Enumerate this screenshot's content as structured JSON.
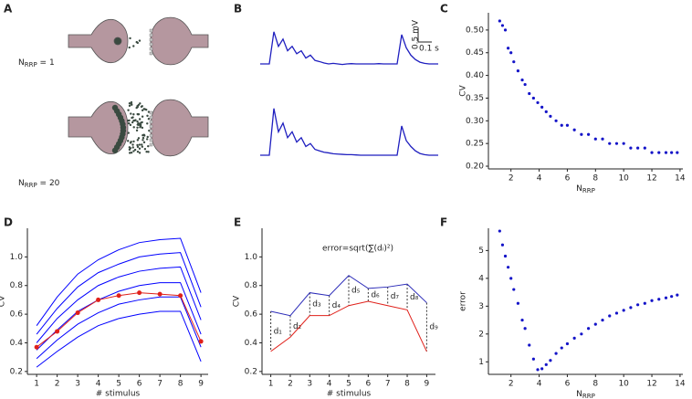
{
  "panel_labels": [
    "A",
    "B",
    "C",
    "D",
    "E",
    "F"
  ],
  "diagram": {
    "labels": [
      {
        "main": "N",
        "sub": "RRP",
        "rest": " = 1"
      },
      {
        "main": "N",
        "sub": "RRP",
        "rest": " = 20"
      }
    ]
  },
  "chart_data": [
    {
      "type": "trace",
      "scale_bar": {
        "y": 0.5,
        "y_label": "0.5 mV",
        "x": 0.1,
        "x_label": "0.1 s"
      },
      "series": [
        {
          "color": "#1f1fbf",
          "values": [
            0,
            0,
            0,
            1.1,
            0.6,
            0.85,
            0.45,
            0.6,
            0.35,
            0.45,
            0.2,
            0.3,
            0.12,
            0.08,
            0.03,
            0,
            0.02,
            0,
            -0.02,
            0,
            0.01,
            0,
            0,
            0,
            0,
            0,
            0.01,
            0,
            0,
            0,
            0,
            1.0,
            0.55,
            0.3,
            0.15,
            0.06,
            0.02,
            0,
            0,
            0
          ]
        },
        {
          "color": "#1f1fbf",
          "values": [
            0,
            0,
            0,
            1.6,
            0.8,
            1.1,
            0.6,
            0.8,
            0.45,
            0.6,
            0.3,
            0.4,
            0.2,
            0.15,
            0.1,
            0.08,
            0.05,
            0.04,
            0.03,
            0.02,
            0.02,
            0.01,
            0,
            0,
            0,
            0,
            0,
            0,
            0,
            0,
            0,
            1.0,
            0.5,
            0.3,
            0.15,
            0.06,
            0.02,
            0,
            0,
            0
          ]
        }
      ]
    },
    {
      "type": "scatter",
      "ylabel": "CV",
      "xlabel": {
        "main": "N",
        "sub": "RRP"
      },
      "xlim": [
        0.4,
        14.2
      ],
      "ylim": [
        0.194,
        0.538
      ],
      "xticks": [
        2,
        4,
        6,
        8,
        10,
        12,
        14
      ],
      "yticks": [
        {
          "value": 0.2,
          "label": "0.20"
        },
        {
          "value": 0.25,
          "label": "0.25"
        },
        {
          "value": 0.3,
          "label": "0.30"
        },
        {
          "value": 0.35,
          "label": "0.35"
        },
        {
          "value": 0.4,
          "label": "0.40"
        },
        {
          "value": 0.45,
          "label": "0.45"
        },
        {
          "value": 0.5,
          "label": "0.50"
        }
      ],
      "color": "#1414c8",
      "x": [
        1.2,
        1.4,
        1.6,
        1.8,
        2.0,
        2.2,
        2.5,
        2.8,
        3.0,
        3.3,
        3.6,
        3.9,
        4.2,
        4.5,
        4.8,
        5.2,
        5.6,
        6.0,
        6.5,
        7.0,
        7.5,
        8.0,
        8.5,
        9.0,
        9.5,
        10.0,
        10.5,
        11.0,
        11.5,
        12.0,
        12.5,
        13.0,
        13.4,
        13.8
      ],
      "values": [
        0.52,
        0.51,
        0.5,
        0.46,
        0.45,
        0.43,
        0.41,
        0.39,
        0.38,
        0.36,
        0.35,
        0.34,
        0.33,
        0.32,
        0.31,
        0.3,
        0.29,
        0.29,
        0.28,
        0.27,
        0.27,
        0.26,
        0.26,
        0.25,
        0.25,
        0.25,
        0.24,
        0.24,
        0.24,
        0.23,
        0.23,
        0.23,
        0.23,
        0.23
      ]
    },
    {
      "type": "line",
      "ylabel": "CV",
      "xlabel": "# stimulus",
      "xlim": [
        0.55,
        9.35
      ],
      "ylim": [
        0.18,
        1.2
      ],
      "xticks": [
        1,
        2,
        3,
        4,
        5,
        6,
        7,
        8,
        9
      ],
      "yticks": [
        0.2,
        0.4,
        0.6,
        0.8,
        {
          "value": 1.0,
          "label": "1.0"
        }
      ],
      "x": [
        1,
        2,
        3,
        4,
        5,
        6,
        7,
        8,
        9
      ],
      "series": [
        {
          "color": "#0000ff",
          "values": [
            0.23,
            0.34,
            0.44,
            0.52,
            0.57,
            0.6,
            0.62,
            0.62,
            0.27
          ]
        },
        {
          "color": "#0000ff",
          "values": [
            0.29,
            0.42,
            0.53,
            0.61,
            0.67,
            0.7,
            0.72,
            0.72,
            0.37
          ]
        },
        {
          "color": "#0000ff",
          "values": [
            0.35,
            0.49,
            0.62,
            0.7,
            0.76,
            0.8,
            0.82,
            0.82,
            0.46
          ]
        },
        {
          "color": "#0000ff",
          "values": [
            0.4,
            0.57,
            0.7,
            0.8,
            0.86,
            0.9,
            0.92,
            0.93,
            0.56
          ]
        },
        {
          "color": "#0000ff",
          "values": [
            0.46,
            0.64,
            0.79,
            0.89,
            0.95,
            1.0,
            1.02,
            1.03,
            0.65
          ]
        },
        {
          "color": "#0000ff",
          "values": [
            0.52,
            0.72,
            0.88,
            0.98,
            1.05,
            1.1,
            1.12,
            1.13,
            0.75
          ]
        },
        {
          "color": "#e0201a",
          "marker": true,
          "values": [
            0.37,
            0.48,
            0.61,
            0.7,
            0.73,
            0.75,
            0.74,
            0.73,
            0.41
          ]
        }
      ]
    },
    {
      "type": "line",
      "ylabel": "CV",
      "xlabel": "# stimulus",
      "annotation": "error=sqrt(∑(dᵢ)²)",
      "xlim": [
        0.55,
        9.45
      ],
      "ylim": [
        0.18,
        1.2
      ],
      "xticks": [
        1,
        2,
        3,
        4,
        5,
        6,
        7,
        8,
        9
      ],
      "yticks": [
        0.2,
        0.4,
        0.6,
        0.8,
        {
          "value": 1.0,
          "label": "1.0"
        }
      ],
      "x": [
        1,
        2,
        3,
        4,
        5,
        6,
        7,
        8,
        9
      ],
      "diff_labels": [
        "d₁",
        "d₂",
        "d₃",
        "d₄",
        "d₅",
        "d₆",
        "d₇",
        "d₈",
        "d₉"
      ],
      "series": [
        {
          "color": "#2a2ab8",
          "values": [
            0.62,
            0.59,
            0.75,
            0.73,
            0.87,
            0.78,
            0.79,
            0.81,
            0.68
          ]
        },
        {
          "color": "#e0201a",
          "values": [
            0.34,
            0.44,
            0.59,
            0.59,
            0.66,
            0.69,
            0.66,
            0.63,
            0.34
          ]
        }
      ]
    },
    {
      "type": "scatter",
      "ylabel": "error",
      "xlabel": {
        "main": "N",
        "sub": "RRP"
      },
      "xlim": [
        0.4,
        14.2
      ],
      "ylim": [
        0.55,
        5.8
      ],
      "xticks": [
        2,
        4,
        6,
        8,
        10,
        12,
        14
      ],
      "yticks": [
        1,
        2,
        3,
        4,
        5
      ],
      "color": "#1414c8",
      "x": [
        1.2,
        1.4,
        1.6,
        1.8,
        2.0,
        2.2,
        2.5,
        2.8,
        3.0,
        3.3,
        3.6,
        3.9,
        4.2,
        4.5,
        4.8,
        5.2,
        5.6,
        6.0,
        6.5,
        7.0,
        7.5,
        8.0,
        8.5,
        9.0,
        9.5,
        10.0,
        10.5,
        11.0,
        11.5,
        12.0,
        12.5,
        13.0,
        13.4,
        13.8
      ],
      "values": [
        5.7,
        5.2,
        4.8,
        4.4,
        4.0,
        3.6,
        3.1,
        2.5,
        2.2,
        1.6,
        1.1,
        0.72,
        0.75,
        0.9,
        1.05,
        1.3,
        1.5,
        1.65,
        1.85,
        2.0,
        2.2,
        2.35,
        2.5,
        2.65,
        2.75,
        2.85,
        2.95,
        3.05,
        3.1,
        3.2,
        3.25,
        3.3,
        3.35,
        3.4
      ]
    }
  ]
}
